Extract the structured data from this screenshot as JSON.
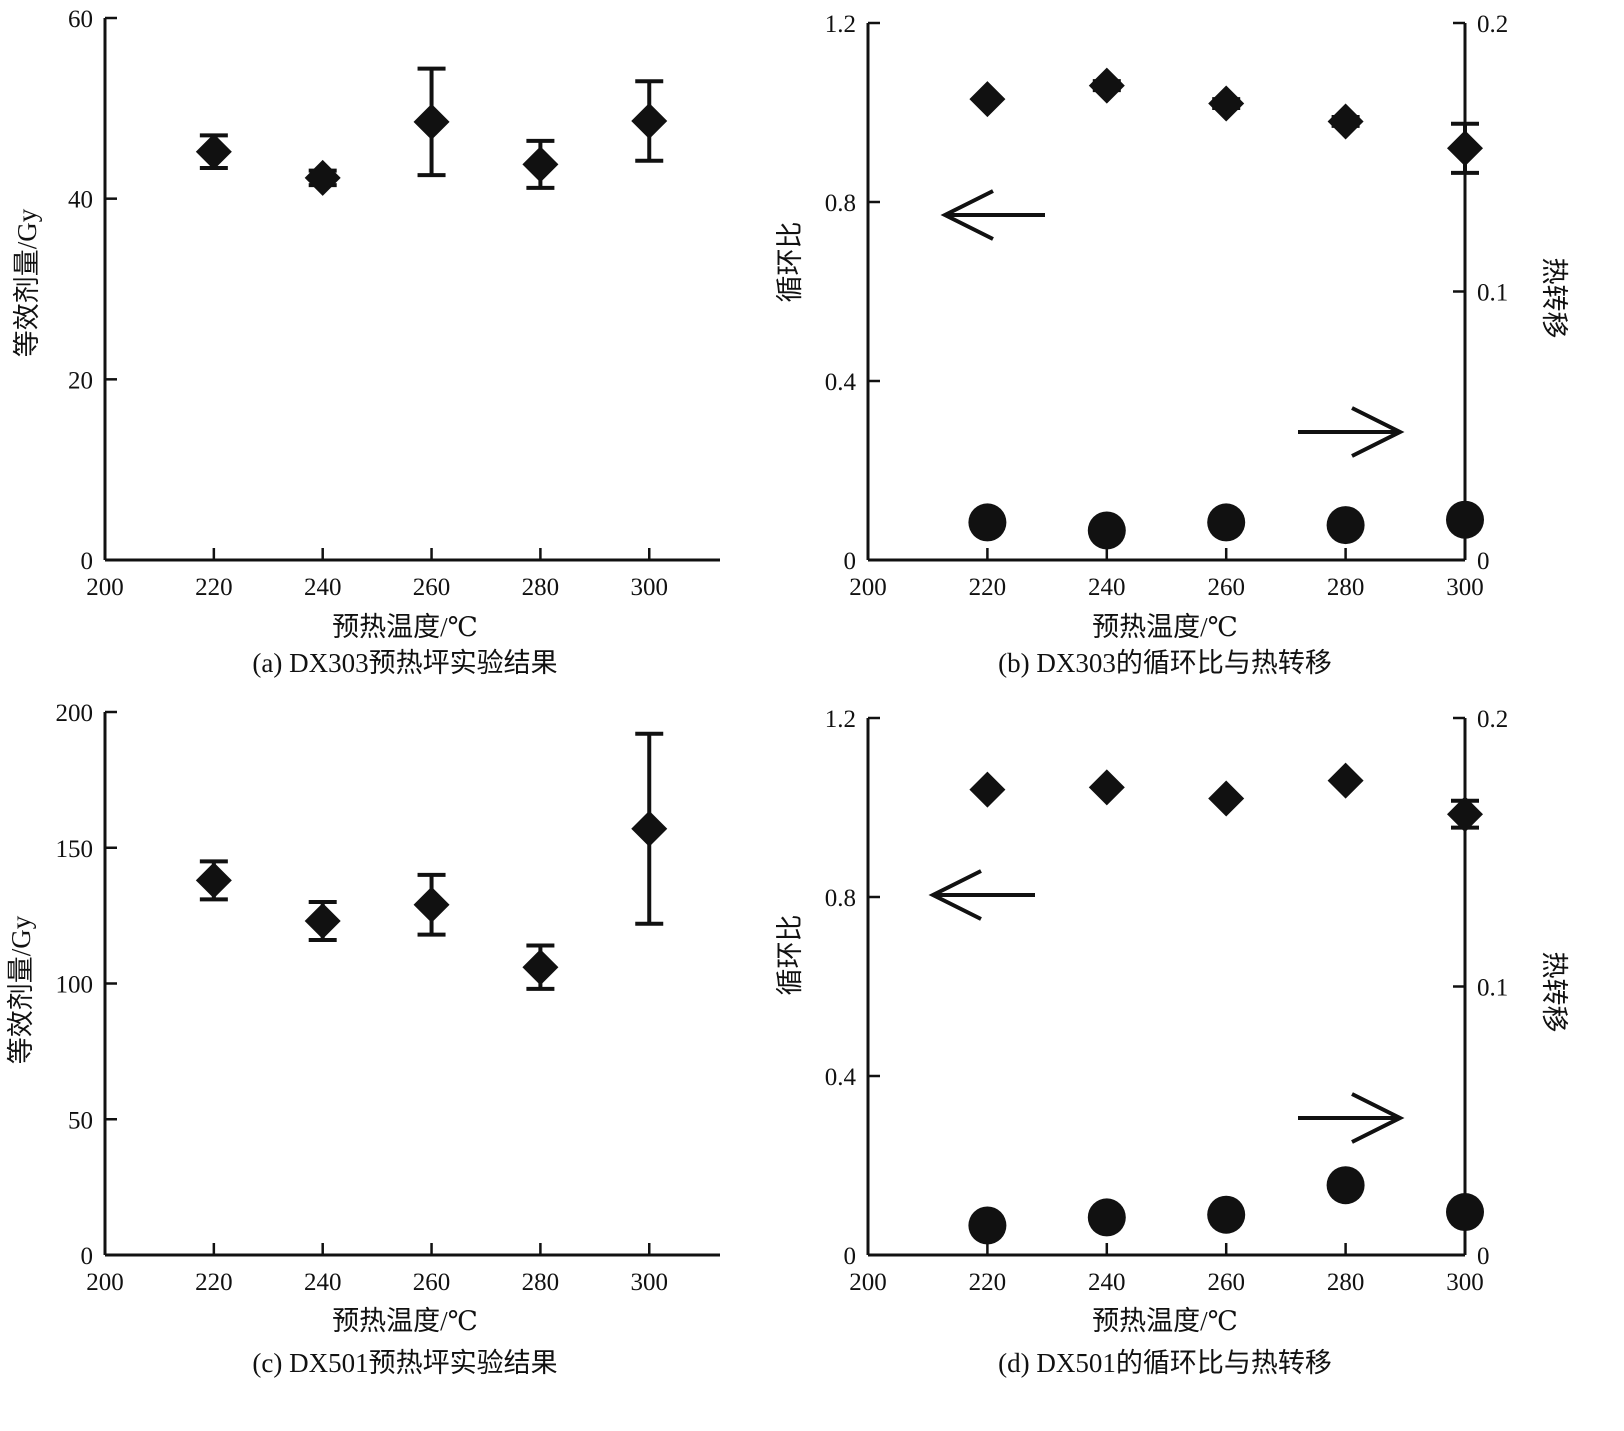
{
  "chart_data": [
    {
      "id": "a",
      "type": "scatter",
      "caption": "(a) DX303预热坪实验结果",
      "xlabel": "预热温度/℃",
      "ylabel": "等效剂量/Gy",
      "xlim": [
        200,
        313
      ],
      "ylim": [
        0,
        60
      ],
      "xticks": [
        "200",
        "220",
        "240",
        "260",
        "280",
        "300"
      ],
      "yticks": [
        "0",
        "20",
        "40",
        "60"
      ],
      "series": [
        {
          "marker": "diamond",
          "x": [
            220,
            240,
            260,
            280,
            300
          ],
          "y": [
            45.2,
            42.3,
            48.5,
            43.8,
            48.6
          ],
          "err": [
            1.8,
            0.8,
            5.9,
            2.6,
            4.4
          ]
        }
      ]
    },
    {
      "id": "b",
      "type": "scatter",
      "caption": "(b) DX303的循环比与热转移",
      "xlabel": "预热温度/℃",
      "ylabel": "循环比",
      "y2label": "热转移",
      "xlim": [
        200,
        300
      ],
      "ylim": [
        0,
        1.2
      ],
      "y2lim": [
        0,
        0.2
      ],
      "xticks": [
        "200",
        "220",
        "240",
        "260",
        "280",
        "300"
      ],
      "yticks": [
        "0",
        "0.4",
        "0.8",
        "1.2"
      ],
      "y2ticks": [
        "0",
        "0.1",
        "0.2"
      ],
      "series": [
        {
          "axis": "left",
          "marker": "diamond",
          "x": [
            220,
            240,
            260,
            280,
            300
          ],
          "y": [
            1.03,
            1.06,
            1.02,
            0.98,
            0.92
          ],
          "err": [
            0.0,
            0.01,
            0.01,
            0.01,
            0.055
          ]
        },
        {
          "axis": "right",
          "marker": "circle",
          "x": [
            220,
            240,
            260,
            280,
            300
          ],
          "y": [
            0.014,
            0.011,
            0.014,
            0.013,
            0.015
          ],
          "err": [
            0,
            0,
            0,
            0,
            0
          ]
        }
      ]
    },
    {
      "id": "c",
      "type": "scatter",
      "caption": "(c) DX501预热坪实验结果",
      "xlabel": "预热温度/℃",
      "ylabel": "等效剂量/Gy",
      "xlim": [
        200,
        313
      ],
      "ylim": [
        0,
        200
      ],
      "xticks": [
        "200",
        "220",
        "240",
        "260",
        "280",
        "300"
      ],
      "yticks": [
        "0",
        "50",
        "100",
        "150",
        "200"
      ],
      "series": [
        {
          "marker": "diamond",
          "x": [
            220,
            240,
            260,
            280,
            300
          ],
          "y": [
            138,
            123,
            129,
            106,
            157
          ],
          "err": [
            7,
            7,
            11,
            8,
            35
          ]
        }
      ]
    },
    {
      "id": "d",
      "type": "scatter",
      "caption": "(d) DX501的循环比与热转移",
      "xlabel": "预热温度/℃",
      "ylabel": "循环比",
      "y2label": "热转移",
      "xlim": [
        200,
        300
      ],
      "ylim": [
        0,
        1.2
      ],
      "y2lim": [
        0,
        0.2
      ],
      "xticks": [
        "200",
        "220",
        "240",
        "260",
        "280",
        "300"
      ],
      "yticks": [
        "0",
        "0.4",
        "0.8",
        "1.2"
      ],
      "y2ticks": [
        "0",
        "0.1",
        "0.2"
      ],
      "series": [
        {
          "axis": "left",
          "marker": "diamond",
          "x": [
            220,
            240,
            260,
            280,
            300
          ],
          "y": [
            1.04,
            1.045,
            1.02,
            1.06,
            0.985
          ],
          "err": [
            0,
            0,
            0,
            0,
            0.03
          ]
        },
        {
          "axis": "right",
          "marker": "circle",
          "x": [
            220,
            240,
            260,
            280,
            300
          ],
          "y": [
            0.011,
            0.014,
            0.015,
            0.026,
            0.016
          ],
          "err": [
            0,
            0,
            0,
            0.004,
            0
          ]
        }
      ]
    }
  ]
}
